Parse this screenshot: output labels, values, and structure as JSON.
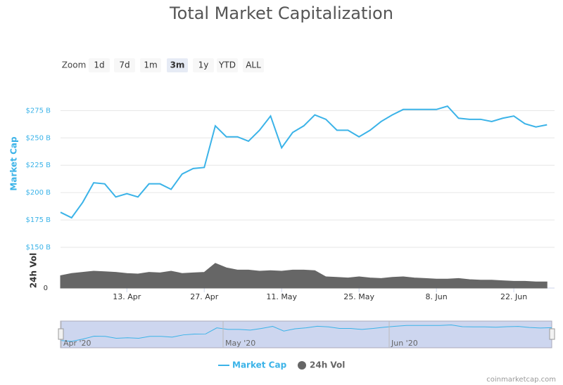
{
  "chart_data": {
    "type": "line",
    "title": "Total Market Capitalization",
    "categories": [
      null,
      null,
      null,
      null,
      null,
      null,
      "13. Apr",
      null,
      null,
      null,
      null,
      null,
      null,
      "27. Apr",
      null,
      null,
      null,
      null,
      null,
      null,
      "11. May",
      null,
      null,
      null,
      null,
      null,
      null,
      "25. May",
      null,
      null,
      null,
      null,
      null,
      null,
      "8. Jun",
      null,
      null,
      null,
      null,
      null,
      null,
      "22. Jun",
      null,
      null,
      null
    ],
    "series": [
      {
        "name": "Market Cap",
        "color": "#3bb3e8",
        "values": [
          182,
          177,
          191,
          209,
          208,
          196,
          199,
          196,
          208,
          208,
          203,
          217,
          222,
          223,
          261,
          251,
          251,
          247,
          257,
          270,
          241,
          255,
          261,
          271,
          267,
          257,
          257,
          251,
          257,
          265,
          271,
          276,
          276,
          276,
          276,
          279,
          268,
          267,
          267,
          265,
          268,
          270,
          263,
          260,
          262
        ]
      },
      {
        "name": "24h Vol",
        "color": "#666666",
        "type": "area",
        "axis": "y2",
        "values": [
          110,
          130,
          140,
          150,
          145,
          140,
          130,
          125,
          140,
          135,
          150,
          130,
          135,
          140,
          220,
          180,
          160,
          160,
          150,
          155,
          150,
          160,
          160,
          155,
          100,
          95,
          90,
          100,
          90,
          85,
          95,
          100,
          90,
          85,
          80,
          80,
          85,
          75,
          70,
          70,
          65,
          60,
          60,
          55,
          55
        ]
      }
    ],
    "ylim": [
      150,
      290
    ],
    "yticks": [
      {
        "value": 150,
        "label": "$150 B"
      },
      {
        "value": 175,
        "label": "$175 B"
      },
      {
        "value": 200,
        "label": "$200 B"
      },
      {
        "value": 225,
        "label": "$225 B"
      },
      {
        "value": 250,
        "label": "$250 B"
      },
      {
        "value": 275,
        "label": "$275 B"
      }
    ],
    "y_label": "Market Cap",
    "y2_label": "24h Vol",
    "y2lim": [
      0,
      300
    ],
    "y2ticks": [
      0
    ],
    "grid": true
  },
  "zoom": {
    "label": "Zoom",
    "buttons": [
      "1d",
      "7d",
      "1m",
      "3m",
      "1y",
      "YTD",
      "ALL"
    ],
    "selected": 3
  },
  "navigator": {
    "labels": [
      "Apr '20",
      "May '20",
      "Jun '20"
    ]
  },
  "credit": "coinmarketcap.com"
}
